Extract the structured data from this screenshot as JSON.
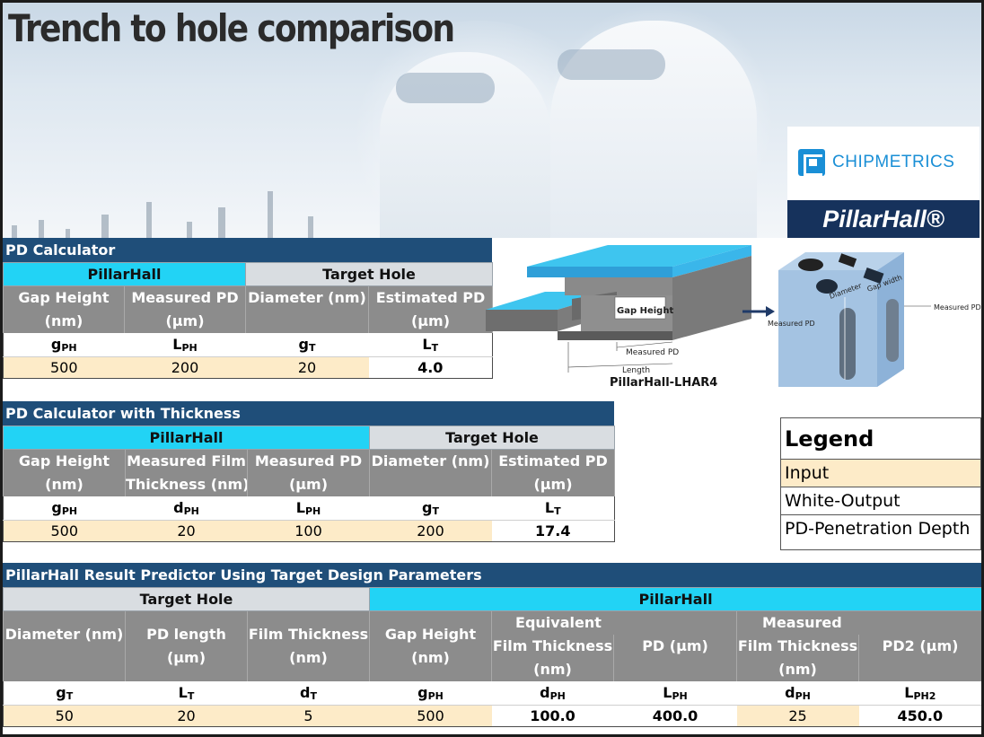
{
  "title": "Trench to hole comparison",
  "logo": {
    "brand": "CHIPMETRICS",
    "product": "PillarHall®"
  },
  "pd_calc": {
    "title": "PD Calculator",
    "group_left": "PillarHall",
    "group_right": "Target Hole",
    "headers": [
      [
        "Gap Height",
        "(nm)"
      ],
      [
        "Measured  PD",
        "(µm)"
      ],
      [
        "Diameter (nm)",
        ""
      ],
      [
        "Estimated PD",
        "(µm)"
      ]
    ],
    "symbols": [
      [
        "g",
        "PH"
      ],
      [
        "L",
        "PH"
      ],
      [
        "g",
        "T"
      ],
      [
        "L",
        "T"
      ]
    ],
    "values": [
      "500",
      "200",
      "20",
      "4.0"
    ]
  },
  "pd_thick": {
    "title": "PD Calculator with Thickness",
    "group_left": "PillarHall",
    "group_right": "Target Hole",
    "headers": [
      [
        "Gap Height",
        "(nm)"
      ],
      [
        "Measured Film",
        "Thickness (nm)"
      ],
      [
        "Measured PD",
        "(µm)"
      ],
      [
        "Diameter (nm)",
        ""
      ],
      [
        "Estimated  PD",
        "(µm)"
      ]
    ],
    "symbols": [
      [
        "g",
        "PH"
      ],
      [
        "d",
        "PH"
      ],
      [
        "L",
        "PH"
      ],
      [
        "g",
        "T"
      ],
      [
        "L",
        "T"
      ]
    ],
    "values": [
      "500",
      "20",
      "100",
      "200",
      "17.4"
    ]
  },
  "predictor": {
    "title": "PillarHall Result Predictor Using Target Design Parameters",
    "group_left": "Target Hole",
    "group_right": "PillarHall",
    "sub_equivalent": "Equivalent",
    "sub_measured": "Measured",
    "headers": [
      [
        "Diameter (nm)",
        ""
      ],
      [
        "PD length",
        "(µm)"
      ],
      [
        "Film Thickness",
        "(nm)"
      ],
      [
        "Gap Height",
        "(nm)"
      ],
      [
        "Film Thickness",
        "(nm)"
      ],
      [
        "PD (µm)",
        ""
      ],
      [
        "Film Thickness",
        "(nm)"
      ],
      [
        "PD2 (µm)",
        ""
      ]
    ],
    "symbols": [
      [
        "g",
        "T"
      ],
      [
        "L",
        "T"
      ],
      [
        "d",
        "T"
      ],
      [
        "g",
        "PH"
      ],
      [
        "d",
        "PH"
      ],
      [
        "L",
        "PH"
      ],
      [
        "d",
        "PH"
      ],
      [
        "L",
        "PH2"
      ]
    ],
    "values": [
      "50",
      "20",
      "5",
      "500",
      "100.0",
      "400.0",
      "25",
      "450.0"
    ]
  },
  "diagram": {
    "gap_height": "Gap Height",
    "measured_pd": "Measured PD",
    "length": "Length",
    "caption": "PillarHall-LHAR4",
    "diameter": "Diameter",
    "gap_width": "Gap width",
    "measured_pd_right": "Measured PD",
    "measured_pd_left": "Measured PD"
  },
  "legend": {
    "title": "Legend",
    "items": [
      "Input",
      "White-Output",
      "PD-Penetration Depth"
    ]
  },
  "colors": {
    "input": "#fdebc8",
    "header_blue": "#1f4e79",
    "cyan": "#22d3f5",
    "gray": "#8c8c8c"
  }
}
